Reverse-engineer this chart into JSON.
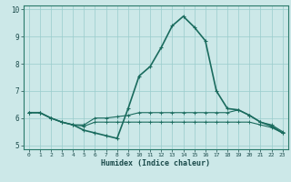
{
  "title": "",
  "xlabel": "Humidex (Indice chaleur)",
  "bg_color": "#cce8e8",
  "grid_color": "#99cccc",
  "line_color": "#1a6b5e",
  "xlim": [
    -0.5,
    23.5
  ],
  "ylim": [
    4.85,
    10.15
  ],
  "yticks": [
    5,
    6,
    7,
    8,
    9,
    10
  ],
  "xticks": [
    0,
    1,
    2,
    3,
    4,
    5,
    6,
    7,
    8,
    9,
    10,
    11,
    12,
    13,
    14,
    15,
    16,
    17,
    18,
    19,
    20,
    21,
    22,
    23
  ],
  "series1_x": [
    0,
    1,
    2,
    3,
    4,
    5,
    6,
    7,
    8,
    9,
    10,
    11,
    12,
    13,
    14,
    15,
    16,
    17,
    18,
    19,
    20,
    21,
    22,
    23
  ],
  "series1_y": [
    6.2,
    6.2,
    6.0,
    5.85,
    5.75,
    5.55,
    5.45,
    5.35,
    5.25,
    6.35,
    7.55,
    7.9,
    8.6,
    9.4,
    9.75,
    9.35,
    8.85,
    7.0,
    6.35,
    6.3,
    6.1,
    5.85,
    5.7,
    5.45
  ],
  "series2_x": [
    0,
    1,
    2,
    3,
    4,
    5,
    6,
    7,
    8,
    9,
    10,
    11,
    12,
    13,
    14,
    15,
    16,
    17,
    18,
    19,
    20,
    21,
    22,
    23
  ],
  "series2_y": [
    6.2,
    6.2,
    6.0,
    5.85,
    5.75,
    5.75,
    6.0,
    6.0,
    6.05,
    6.1,
    6.2,
    6.2,
    6.2,
    6.2,
    6.2,
    6.2,
    6.2,
    6.2,
    6.2,
    6.3,
    6.1,
    5.85,
    5.75,
    5.5
  ],
  "series3_x": [
    0,
    1,
    2,
    3,
    4,
    5,
    6,
    7,
    8,
    9,
    10,
    11,
    12,
    13,
    14,
    15,
    16,
    17,
    18,
    19,
    20,
    21,
    22,
    23
  ],
  "series3_y": [
    6.2,
    6.2,
    6.0,
    5.85,
    5.75,
    5.7,
    5.85,
    5.85,
    5.85,
    5.85,
    5.85,
    5.85,
    5.85,
    5.85,
    5.85,
    5.85,
    5.85,
    5.85,
    5.85,
    5.85,
    5.85,
    5.75,
    5.65,
    5.45
  ]
}
